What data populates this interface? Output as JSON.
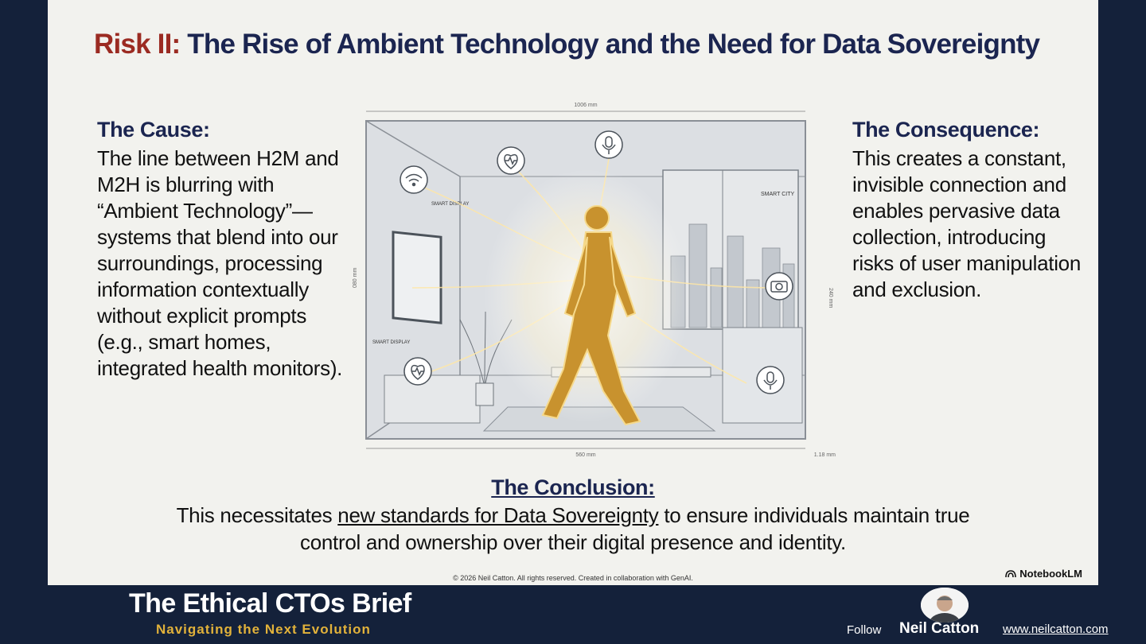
{
  "slide": {
    "title_prefix": "Risk II:",
    "title_rest": "The Rise of Ambient Technology and the Need for Data Sovereignty",
    "cause": {
      "heading": "The Cause:",
      "body": "The line between H2M and M2H is blurring with “Ambient Technology”—systems that blend into our surroundings, processing information contextually without explicit prompts (e.g., smart homes, integrated health monitors)."
    },
    "consequence": {
      "heading": "The Consequence:",
      "body": "This creates a constant, invisible connection and enables pervasive data collection, introducing risks of user manipulation and exclusion."
    },
    "illustration": {
      "dim_top": "1006 mm",
      "dim_bottom": "560 mm",
      "dim_bottom_right": "1.18 mm",
      "dim_left": "080 mm",
      "dim_right": "240 mm",
      "label_smart_display_1": "SMART DISPLAY",
      "label_smart_display_2": "SMART DISPLAY",
      "label_smart_city": "SMART CITY"
    },
    "conclusion": {
      "heading": "The Conclusion:",
      "before": "This necessitates ",
      "highlight": "new standards for Data Sovereignty",
      "after": " to ensure individuals maintain true control and ownership over their digital presence and identity."
    },
    "copyright": "© 2026 Neil Catton. All rights reserved. Created in collaboration with GenAI.",
    "watermark": "NotebookLM"
  },
  "footer": {
    "brand_title": "The Ethical CTOs Brief",
    "brand_subtitle": "Navigating the Next Evolution",
    "follow_label": "Follow",
    "author_name": "Neil Catton",
    "website": "www.neilcatton.com"
  },
  "colors": {
    "background": "#14213a",
    "slide": "#f2f2ee",
    "heading": "#1b2550",
    "risk_red": "#9b2b22",
    "gold": "#e2b23a",
    "figure": "#c8922e"
  }
}
